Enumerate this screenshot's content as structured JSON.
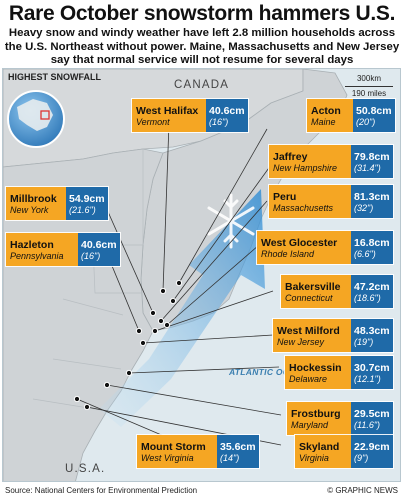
{
  "header": {
    "title": "Rare October snowstorm hammers U.S.",
    "subtitle": "Heavy snow and windy weather have left 2.8 million households across the U.S. Northeast without power. Maine, Massachusetts and New Jersey say that normal service will not resume for several days"
  },
  "map": {
    "heading": "HIGHEST SNOWFALL",
    "country_canada": "CANADA",
    "country_usa": "U.S.A.",
    "ocean": "ATLANTIC OCEAN",
    "scale_km": "300km",
    "scale_miles": "190 miles",
    "colors": {
      "land": "#cfd3d6",
      "sea": "#dfe9ee",
      "place_box": "#f5a623",
      "amount_box": "#1f6aa8",
      "storm_arrow": "#2b8ad3"
    }
  },
  "locations": [
    {
      "name": "West Halifax",
      "state": "Vermont",
      "cm": "40.6cm",
      "inches": "(16\")"
    },
    {
      "name": "Acton",
      "state": "Maine",
      "cm": "50.8cm",
      "inches": "(20\")"
    },
    {
      "name": "Jaffrey",
      "state": "New Hampshire",
      "cm": "79.8cm",
      "inches": "(31.4\")"
    },
    {
      "name": "Millbrook",
      "state": "New York",
      "cm": "54.9cm",
      "inches": "(21.6\")"
    },
    {
      "name": "Peru",
      "state": "Massachusetts",
      "cm": "81.3cm",
      "inches": "(32\")"
    },
    {
      "name": "Hazleton",
      "state": "Pennsylvania",
      "cm": "40.6cm",
      "inches": "(16\")"
    },
    {
      "name": "West Glocester",
      "state": "Rhode Island",
      "cm": "16.8cm",
      "inches": "(6.6\")"
    },
    {
      "name": "Bakersville",
      "state": "Connecticut",
      "cm": "47.2cm",
      "inches": "(18.6\")"
    },
    {
      "name": "West Milford",
      "state": "New Jersey",
      "cm": "48.3cm",
      "inches": "(19\")"
    },
    {
      "name": "Hockessin",
      "state": "Delaware",
      "cm": "30.7cm",
      "inches": "(12.1\")"
    },
    {
      "name": "Frostburg",
      "state": "Maryland",
      "cm": "29.5cm",
      "inches": "(11.6\")"
    },
    {
      "name": "Mount Storm",
      "state": "West Virginia",
      "cm": "35.6cm",
      "inches": "(14\")"
    },
    {
      "name": "Skyland",
      "state": "Virginia",
      "cm": "22.9cm",
      "inches": "(9\")"
    }
  ],
  "footer": {
    "source": "Source: National Centers for Environmental Prediction",
    "credit": "© GRAPHIC NEWS"
  }
}
